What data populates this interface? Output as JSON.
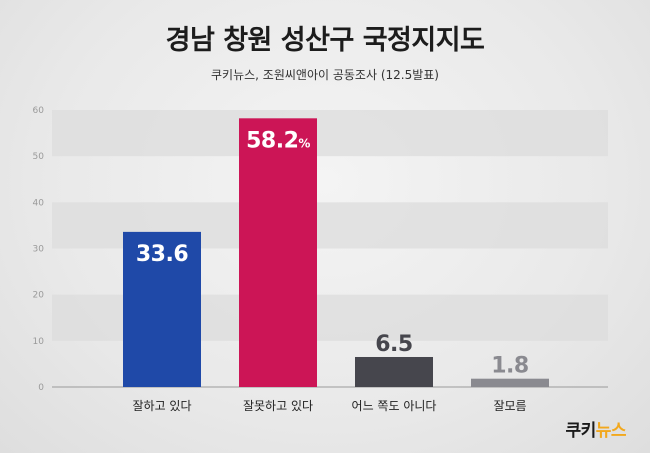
{
  "chart_data": {
    "type": "bar",
    "title": "경남 창원 성산구 국정지지도",
    "subtitle": "쿠키뉴스, 조원씨앤아이 공동조사 (12.5발표)",
    "categories": [
      "잘하고 있다",
      "잘못하고 있다",
      "어느 쪽도 아니다",
      "잘모름"
    ],
    "values": [
      33.6,
      58.2,
      6.5,
      1.8
    ],
    "value_labels": [
      "33.6",
      "58.2",
      "6.5",
      "1.8"
    ],
    "value_suffix": [
      "",
      "%",
      "",
      ""
    ],
    "colors": [
      "#1f49a8",
      "#cc1556",
      "#46464d",
      "#8a8a90"
    ],
    "ylim": [
      0,
      60
    ],
    "yticks": [
      0,
      10,
      20,
      30,
      40,
      50,
      60
    ],
    "grid": true
  },
  "logo": {
    "text_main": "쿠키",
    "text_accent": "뉴스"
  }
}
